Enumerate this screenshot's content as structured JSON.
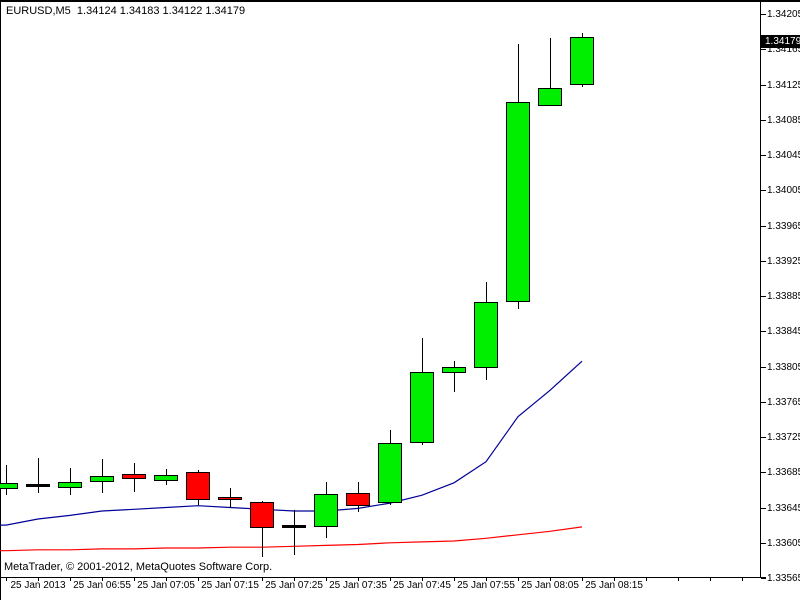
{
  "header": {
    "symbol_period": "EURUSD,M5",
    "quote_string": "1.34124 1.34183 1.34122 1.34179"
  },
  "footer": {
    "credit": "MetaTrader, © 2001-2012, MetaQuotes Software Corp."
  },
  "colors": {
    "background": "#ffffff",
    "bull_body": "#00ee00",
    "bear_body": "#ff0000",
    "outline": "#000000",
    "ma_fast": "#000098",
    "ma_slow": "#ff0000",
    "axis_text": "#000000",
    "price_marker_bg": "#000000",
    "price_marker_text": "#ffffff"
  },
  "price_axis": {
    "current_price": "1.34179",
    "labels": [
      "1.34205",
      "1.34165",
      "1.34125",
      "1.34085",
      "1.34045",
      "1.34005",
      "1.33965",
      "1.33925",
      "1.33885",
      "1.33845",
      "1.33805",
      "1.33765",
      "1.33725",
      "1.33685",
      "1.33645",
      "1.33605",
      "1.33565"
    ]
  },
  "time_axis": {
    "labels": [
      {
        "index": 1,
        "label": "25 Jan 2013"
      },
      {
        "index": 3,
        "label": "25 Jan 06:55"
      },
      {
        "index": 5,
        "label": "25 Jan 07:05"
      },
      {
        "index": 7,
        "label": "25 Jan 07:15"
      },
      {
        "index": 9,
        "label": "25 Jan 07:25"
      },
      {
        "index": 11,
        "label": "25 Jan 07:35"
      },
      {
        "index": 13,
        "label": "25 Jan 07:45"
      },
      {
        "index": 15,
        "label": "25 Jan 07:55"
      },
      {
        "index": 17,
        "label": "25 Jan 08:05"
      },
      {
        "index": 19,
        "label": "25 Jan 08:15"
      }
    ]
  },
  "chart_data": {
    "type": "candlestick",
    "title": "EURUSD,M5",
    "symbol": "EURUSD",
    "period": "M5",
    "date": "25 Jan 2013",
    "ylim": [
      1.33565,
      1.34205
    ],
    "y_tick_step": 0.0004,
    "grid": "off",
    "latest_ohlc": {
      "open": "1.34124",
      "high": "1.34183",
      "low": "1.34122",
      "close": "1.34179"
    },
    "candles": [
      {
        "time": "06:40",
        "dir": "up",
        "o": 1.33666,
        "h": 1.33693,
        "l": 1.33659,
        "c": 1.33673
      },
      {
        "time": "06:45",
        "dir": "doji",
        "o": 1.33671,
        "h": 1.33701,
        "l": 1.33661,
        "c": 1.33671
      },
      {
        "time": "06:50",
        "dir": "up",
        "o": 1.33667,
        "h": 1.3369,
        "l": 1.33659,
        "c": 1.33674
      },
      {
        "time": "06:55",
        "dir": "up",
        "o": 1.33674,
        "h": 1.337,
        "l": 1.33661,
        "c": 1.33681
      },
      {
        "time": "07:00",
        "dir": "down",
        "o": 1.33683,
        "h": 1.33696,
        "l": 1.33663,
        "c": 1.33677
      },
      {
        "time": "07:05",
        "dir": "up",
        "o": 1.33675,
        "h": 1.33689,
        "l": 1.3367,
        "c": 1.33682
      },
      {
        "time": "07:10",
        "dir": "down",
        "o": 1.33685,
        "h": 1.33688,
        "l": 1.33648,
        "c": 1.33653
      },
      {
        "time": "07:15",
        "dir": "down",
        "o": 1.33657,
        "h": 1.33667,
        "l": 1.33644,
        "c": 1.33653
      },
      {
        "time": "07:20",
        "dir": "down",
        "o": 1.33651,
        "h": 1.33652,
        "l": 1.33589,
        "c": 1.33622
      },
      {
        "time": "07:25",
        "dir": "doji",
        "o": 1.33624,
        "h": 1.33642,
        "l": 1.33591,
        "c": 1.33624
      },
      {
        "time": "07:30",
        "dir": "up",
        "o": 1.33623,
        "h": 1.33674,
        "l": 1.3361,
        "c": 1.3366
      },
      {
        "time": "07:35",
        "dir": "down",
        "o": 1.33661,
        "h": 1.33674,
        "l": 1.3364,
        "c": 1.33647
      },
      {
        "time": "07:40",
        "dir": "up",
        "o": 1.3365,
        "h": 1.33733,
        "l": 1.33648,
        "c": 1.33718
      },
      {
        "time": "07:45",
        "dir": "up",
        "o": 1.33718,
        "h": 1.33837,
        "l": 1.33716,
        "c": 1.33799
      },
      {
        "time": "07:50",
        "dir": "up",
        "o": 1.33798,
        "h": 1.33811,
        "l": 1.33776,
        "c": 1.33805
      },
      {
        "time": "07:55",
        "dir": "up",
        "o": 1.33803,
        "h": 1.33901,
        "l": 1.3379,
        "c": 1.33878
      },
      {
        "time": "08:00",
        "dir": "up",
        "o": 1.33878,
        "h": 1.34171,
        "l": 1.3387,
        "c": 1.34105
      },
      {
        "time": "08:05",
        "dir": "up",
        "o": 1.34101,
        "h": 1.34178,
        "l": 1.34101,
        "c": 1.34121
      },
      {
        "time": "08:10",
        "dir": "up",
        "o": 1.34124,
        "h": 1.34183,
        "l": 1.34122,
        "c": 1.34179
      }
    ],
    "series": [
      {
        "name": "ma-fast-blue",
        "color": "#000098",
        "values": [
          1.33625,
          1.33632,
          1.33636,
          1.33641,
          1.33643,
          1.33645,
          1.33647,
          1.33645,
          1.33643,
          1.33641,
          1.33641,
          1.33644,
          1.3365,
          1.33659,
          1.33673,
          1.33697,
          1.33748,
          1.33778,
          1.33811
        ]
      },
      {
        "name": "ma-slow-red",
        "color": "#ff0000",
        "values": [
          1.33596,
          1.33597,
          1.33597,
          1.33598,
          1.33598,
          1.33599,
          1.33599,
          1.336,
          1.336,
          1.33601,
          1.33602,
          1.33603,
          1.33605,
          1.33606,
          1.33607,
          1.3361,
          1.33614,
          1.33618,
          1.33623
        ]
      }
    ]
  }
}
